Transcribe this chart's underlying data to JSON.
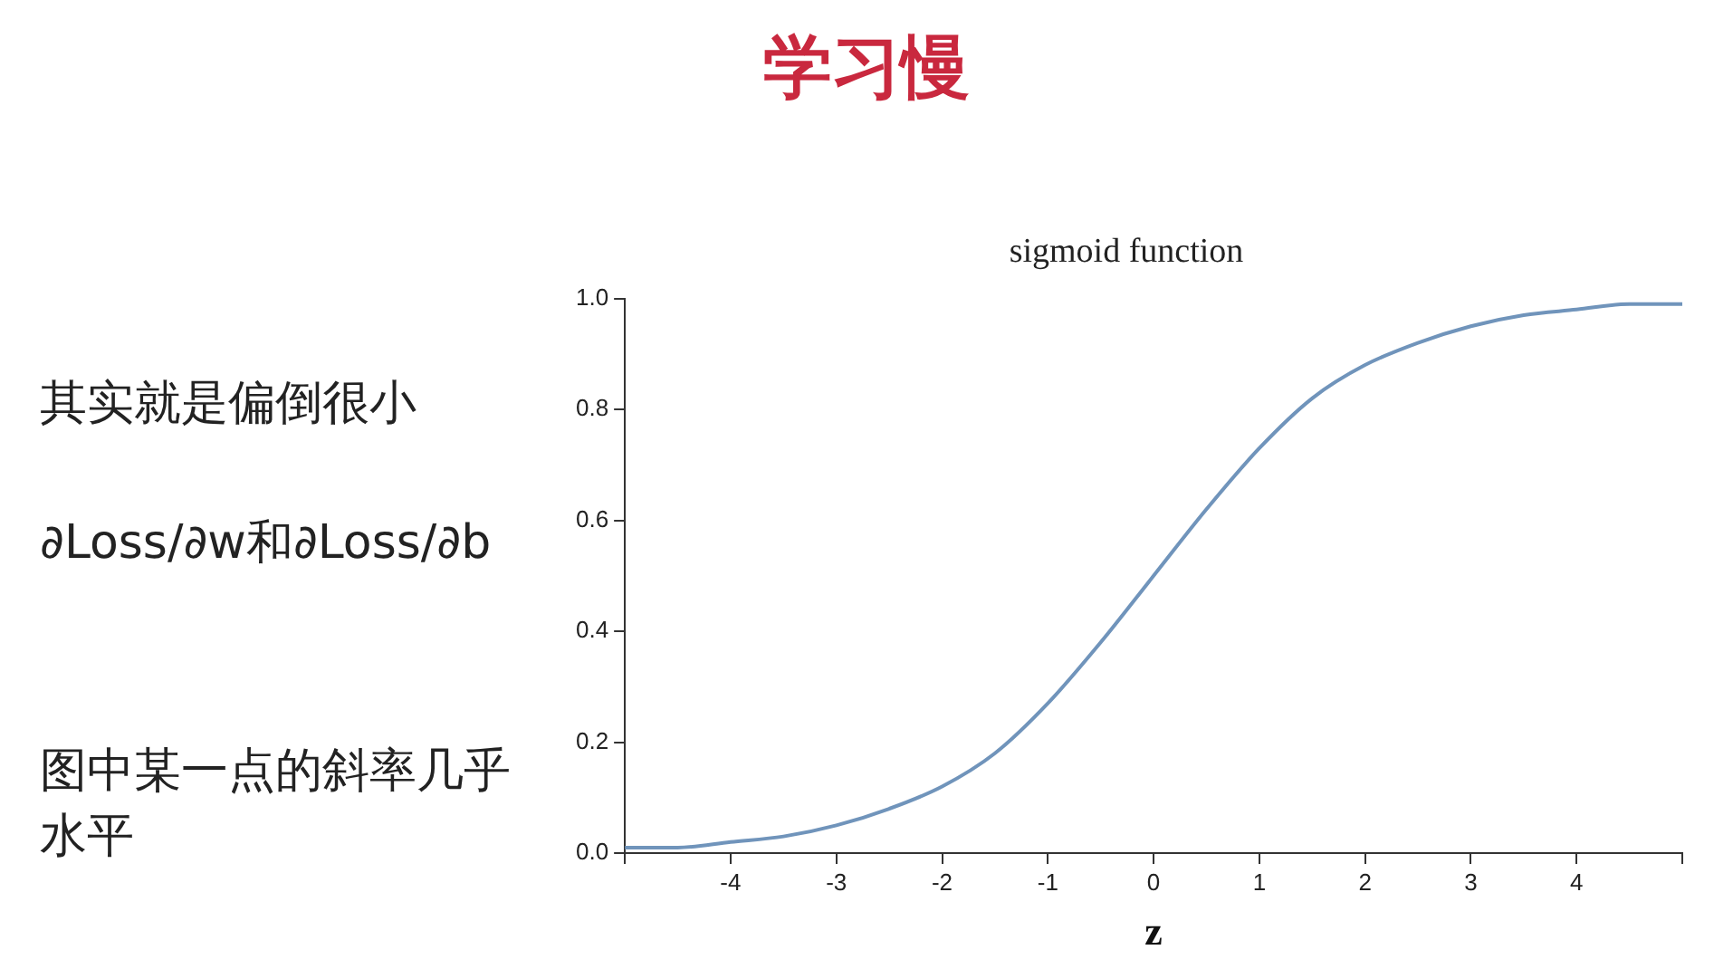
{
  "chart_data": {
    "type": "line",
    "title": "学习慢",
    "subtitle": "sigmoid function",
    "xlabel": "z",
    "x": [
      -5,
      -4.5,
      -4,
      -3.5,
      -3,
      -2.5,
      -2,
      -1.5,
      -1,
      -0.5,
      0,
      0.5,
      1,
      1.5,
      2,
      2.5,
      3,
      3.5,
      4,
      4.5,
      5
    ],
    "series": [
      {
        "color": "#7094bb",
        "values": [
          0.01,
          0.01,
          0.02,
          0.03,
          0.05,
          0.08,
          0.12,
          0.18,
          0.27,
          0.38,
          0.5,
          0.62,
          0.73,
          0.82,
          0.88,
          0.92,
          0.95,
          0.97,
          0.98,
          0.99,
          0.99
        ]
      }
    ],
    "xlim": [
      -5,
      5
    ],
    "xticks": [
      {
        "value": -5,
        "label": null
      },
      -4,
      -3,
      -2,
      -1,
      0,
      1,
      2,
      3,
      4,
      {
        "value": 5,
        "label": null
      }
    ],
    "ylim": [
      0,
      1
    ],
    "yticks": [
      {
        "value": 0,
        "label": "0.0"
      },
      {
        "value": 0.2,
        "label": "0.2"
      },
      {
        "value": 0.4,
        "label": "0.4"
      },
      {
        "value": 0.6,
        "label": "0.6"
      },
      {
        "value": 0.8,
        "label": "0.8"
      },
      {
        "value": 1,
        "label": "1.0"
      }
    ],
    "grid": false,
    "legend": false,
    "marker": "none",
    "line_style": "solid",
    "annotations": [
      "其实就是偏倒很小",
      "∂Loss/∂w和∂Loss/∂b",
      "图中某一点的斜率几乎水平"
    ]
  }
}
